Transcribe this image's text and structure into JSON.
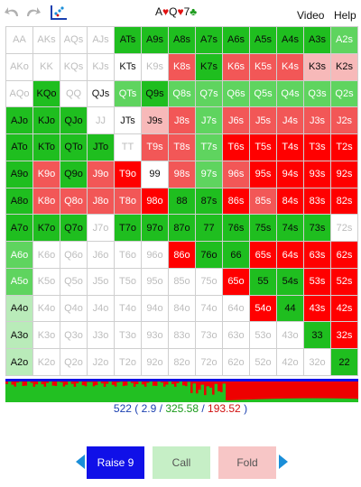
{
  "toolbar": {
    "undo_icon": "undo-arrow-icon",
    "redo_icon": "redo-arrow-icon",
    "scatter_icon": "scatter-plot-icon",
    "video_label": "Video",
    "help_label": "Help"
  },
  "board": [
    {
      "rank": "A",
      "suit": "♥",
      "color": "red"
    },
    {
      "rank": "Q",
      "suit": "♥",
      "color": "red"
    },
    {
      "rank": "7",
      "suit": "♣",
      "color": "green"
    }
  ],
  "hand_matrix": [
    [
      [
        "AA",
        "W"
      ],
      [
        "AKs",
        "W"
      ],
      [
        "AQs",
        "W"
      ],
      [
        "AJs",
        "W"
      ],
      [
        "ATs",
        "G"
      ],
      [
        "A9s",
        "G"
      ],
      [
        "A8s",
        "G"
      ],
      [
        "A7s",
        "G"
      ],
      [
        "A6s",
        "G"
      ],
      [
        "A5s",
        "G"
      ],
      [
        "A4s",
        "G"
      ],
      [
        "A3s",
        "G"
      ],
      [
        "A2s",
        "g"
      ]
    ],
    [
      [
        "AKo",
        "W"
      ],
      [
        "KK",
        "W"
      ],
      [
        "KQs",
        "W"
      ],
      [
        "KJs",
        "W"
      ],
      [
        "KTs",
        "Wd"
      ],
      [
        "K9s",
        "W"
      ],
      [
        "K8s",
        "r"
      ],
      [
        "K7s",
        "G"
      ],
      [
        "K6s",
        "r"
      ],
      [
        "K5s",
        "r"
      ],
      [
        "K4s",
        "r"
      ],
      [
        "K3s",
        "lr"
      ],
      [
        "K2s",
        "lr"
      ]
    ],
    [
      [
        "AQo",
        "W"
      ],
      [
        "KQo",
        "G"
      ],
      [
        "QQ",
        "W"
      ],
      [
        "QJs",
        "Wd"
      ],
      [
        "QTs",
        "g"
      ],
      [
        "Q9s",
        "G"
      ],
      [
        "Q8s",
        "g"
      ],
      [
        "Q7s",
        "g"
      ],
      [
        "Q6s",
        "g"
      ],
      [
        "Q5s",
        "g"
      ],
      [
        "Q4s",
        "g"
      ],
      [
        "Q3s",
        "g"
      ],
      [
        "Q2s",
        "g"
      ]
    ],
    [
      [
        "AJo",
        "G"
      ],
      [
        "KJo",
        "G"
      ],
      [
        "QJo",
        "G"
      ],
      [
        "JJ",
        "W"
      ],
      [
        "JTs",
        "Wd"
      ],
      [
        "J9s",
        "lr"
      ],
      [
        "J8s",
        "r"
      ],
      [
        "J7s",
        "g"
      ],
      [
        "J6s",
        "r"
      ],
      [
        "J5s",
        "r"
      ],
      [
        "J4s",
        "r"
      ],
      [
        "J3s",
        "r"
      ],
      [
        "J2s",
        "r"
      ]
    ],
    [
      [
        "ATo",
        "G"
      ],
      [
        "KTo",
        "G"
      ],
      [
        "QTo",
        "G"
      ],
      [
        "JTo",
        "G"
      ],
      [
        "TT",
        "W"
      ],
      [
        "T9s",
        "r"
      ],
      [
        "T8s",
        "r"
      ],
      [
        "T7s",
        "g"
      ],
      [
        "T6s",
        "R"
      ],
      [
        "T5s",
        "R"
      ],
      [
        "T4s",
        "R"
      ],
      [
        "T3s",
        "R"
      ],
      [
        "T2s",
        "R"
      ]
    ],
    [
      [
        "A9o",
        "G"
      ],
      [
        "K9o",
        "r"
      ],
      [
        "Q9o",
        "G"
      ],
      [
        "J9o",
        "r"
      ],
      [
        "T9o",
        "R"
      ],
      [
        "99",
        "Wd"
      ],
      [
        "98s",
        "r"
      ],
      [
        "97s",
        "g"
      ],
      [
        "96s",
        "r"
      ],
      [
        "95s",
        "R"
      ],
      [
        "94s",
        "R"
      ],
      [
        "93s",
        "R"
      ],
      [
        "92s",
        "R"
      ]
    ],
    [
      [
        "A8o",
        "G"
      ],
      [
        "K8o",
        "r"
      ],
      [
        "Q8o",
        "r"
      ],
      [
        "J8o",
        "r"
      ],
      [
        "T8o",
        "r"
      ],
      [
        "98o",
        "R"
      ],
      [
        "88",
        "G"
      ],
      [
        "87s",
        "G"
      ],
      [
        "86s",
        "R"
      ],
      [
        "85s",
        "r"
      ],
      [
        "84s",
        "R"
      ],
      [
        "83s",
        "R"
      ],
      [
        "82s",
        "R"
      ]
    ],
    [
      [
        "A7o",
        "G"
      ],
      [
        "K7o",
        "G"
      ],
      [
        "Q7o",
        "G"
      ],
      [
        "J7o",
        "W"
      ],
      [
        "T7o",
        "G"
      ],
      [
        "97o",
        "G"
      ],
      [
        "87o",
        "G"
      ],
      [
        "77",
        "G"
      ],
      [
        "76s",
        "G"
      ],
      [
        "75s",
        "G"
      ],
      [
        "74s",
        "G"
      ],
      [
        "73s",
        "G"
      ],
      [
        "72s",
        "W"
      ]
    ],
    [
      [
        "A6o",
        "g"
      ],
      [
        "K6o",
        "W"
      ],
      [
        "Q6o",
        "W"
      ],
      [
        "J6o",
        "W"
      ],
      [
        "T6o",
        "W"
      ],
      [
        "96o",
        "W"
      ],
      [
        "86o",
        "R"
      ],
      [
        "76o",
        "G"
      ],
      [
        "66",
        "G"
      ],
      [
        "65s",
        "R"
      ],
      [
        "64s",
        "R"
      ],
      [
        "63s",
        "R"
      ],
      [
        "62s",
        "R"
      ]
    ],
    [
      [
        "A5o",
        "g"
      ],
      [
        "K5o",
        "W"
      ],
      [
        "Q5o",
        "W"
      ],
      [
        "J5o",
        "W"
      ],
      [
        "T5o",
        "W"
      ],
      [
        "95o",
        "W"
      ],
      [
        "85o",
        "W"
      ],
      [
        "75o",
        "W"
      ],
      [
        "65o",
        "R"
      ],
      [
        "55",
        "G"
      ],
      [
        "54s",
        "G"
      ],
      [
        "53s",
        "R"
      ],
      [
        "52s",
        "R"
      ]
    ],
    [
      [
        "A4o",
        "lg"
      ],
      [
        "K4o",
        "W"
      ],
      [
        "Q4o",
        "W"
      ],
      [
        "J4o",
        "W"
      ],
      [
        "T4o",
        "W"
      ],
      [
        "94o",
        "W"
      ],
      [
        "84o",
        "W"
      ],
      [
        "74o",
        "W"
      ],
      [
        "64o",
        "W"
      ],
      [
        "54o",
        "R"
      ],
      [
        "44",
        "G"
      ],
      [
        "43s",
        "R"
      ],
      [
        "42s",
        "R"
      ]
    ],
    [
      [
        "A3o",
        "lg"
      ],
      [
        "K3o",
        "W"
      ],
      [
        "Q3o",
        "W"
      ],
      [
        "J3o",
        "W"
      ],
      [
        "T3o",
        "W"
      ],
      [
        "93o",
        "W"
      ],
      [
        "83o",
        "W"
      ],
      [
        "73o",
        "W"
      ],
      [
        "63o",
        "W"
      ],
      [
        "53o",
        "W"
      ],
      [
        "43o",
        "W"
      ],
      [
        "33",
        "G"
      ],
      [
        "32s",
        "R"
      ]
    ],
    [
      [
        "A2o",
        "lg"
      ],
      [
        "K2o",
        "W"
      ],
      [
        "Q2o",
        "W"
      ],
      [
        "J2o",
        "W"
      ],
      [
        "T2o",
        "W"
      ],
      [
        "92o",
        "W"
      ],
      [
        "82o",
        "W"
      ],
      [
        "72o",
        "W"
      ],
      [
        "62o",
        "W"
      ],
      [
        "52o",
        "W"
      ],
      [
        "42o",
        "W"
      ],
      [
        "32o",
        "W"
      ],
      [
        "22",
        "G"
      ]
    ]
  ],
  "colors": {
    "raise": "#1010e8",
    "call": "#22c022",
    "fold": "#ee0000"
  },
  "summary": {
    "combos": "522",
    "open_paren": " ( ",
    "raise_pct": "2.9",
    "sep1": " / ",
    "call_pct": "325.58",
    "sep2": " / ",
    "fold_pct": "193.52",
    "close_paren": " )"
  },
  "actions": {
    "prev_icon": "left-triangle-icon",
    "raise_label": "Raise 9",
    "call_label": "Call",
    "fold_label": "Fold",
    "next_icon": "right-triangle-icon"
  }
}
